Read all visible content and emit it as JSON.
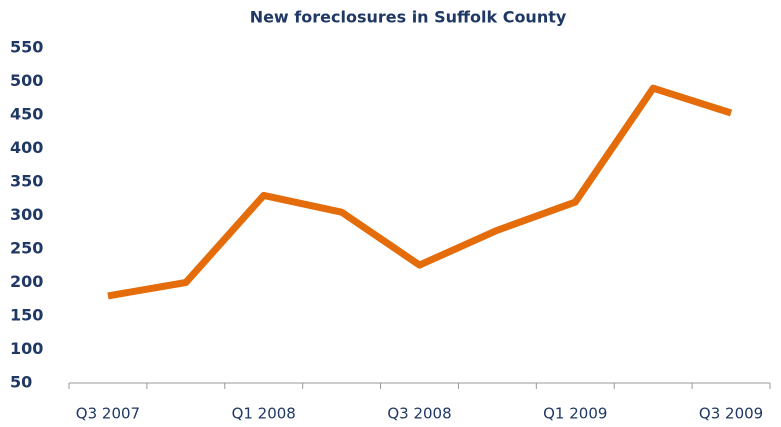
{
  "chart_data": {
    "type": "line",
    "title": "New foreclosures in Suffolk County",
    "categories": [
      "Q3 2007",
      null,
      "Q1 2008",
      null,
      "Q3 2008",
      null,
      "Q1 2009",
      null,
      "Q3 2009"
    ],
    "series": [
      {
        "name": "New foreclosures",
        "color": "#e46c0a",
        "values": [
          180,
          200,
          330,
          305,
          226,
          278,
          320,
          490,
          453
        ]
      }
    ],
    "ylim": [
      50,
      550
    ],
    "yticks": [
      50,
      100,
      150,
      200,
      250,
      300,
      350,
      400,
      450,
      500,
      550
    ],
    "grid": false,
    "legend": false
  }
}
